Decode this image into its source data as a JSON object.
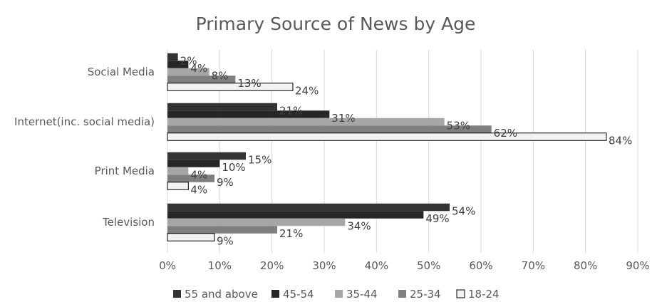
{
  "chart_data": {
    "type": "bar",
    "orientation": "horizontal",
    "title": "Primary Source of News by Age",
    "xlabel": "",
    "ylabel": "",
    "categories": [
      "Social Media",
      "Internet(inc. social media)",
      "Print Media",
      "Television"
    ],
    "series": [
      {
        "name": "55 and above",
        "values": [
          2,
          21,
          15,
          54
        ],
        "color": "#333333"
      },
      {
        "name": "45-54",
        "values": [
          4,
          31,
          10,
          49
        ],
        "color": "#262626"
      },
      {
        "name": "35-44",
        "values": [
          8,
          53,
          4,
          34
        ],
        "color": "#a6a6a6"
      },
      {
        "name": "25-34",
        "values": [
          13,
          62,
          9,
          21
        ],
        "color": "#7f7f7f"
      },
      {
        "name": "18-24",
        "values": [
          24,
          84,
          4,
          9
        ],
        "color": "#f2f2f2"
      }
    ],
    "xlim": [
      0,
      90
    ],
    "xticks": [
      "0%",
      "10%",
      "20%",
      "30%",
      "40%",
      "50%",
      "60%",
      "70%",
      "80%",
      "90%"
    ],
    "value_suffix": "%",
    "grid": true,
    "legend_position": "bottom"
  }
}
